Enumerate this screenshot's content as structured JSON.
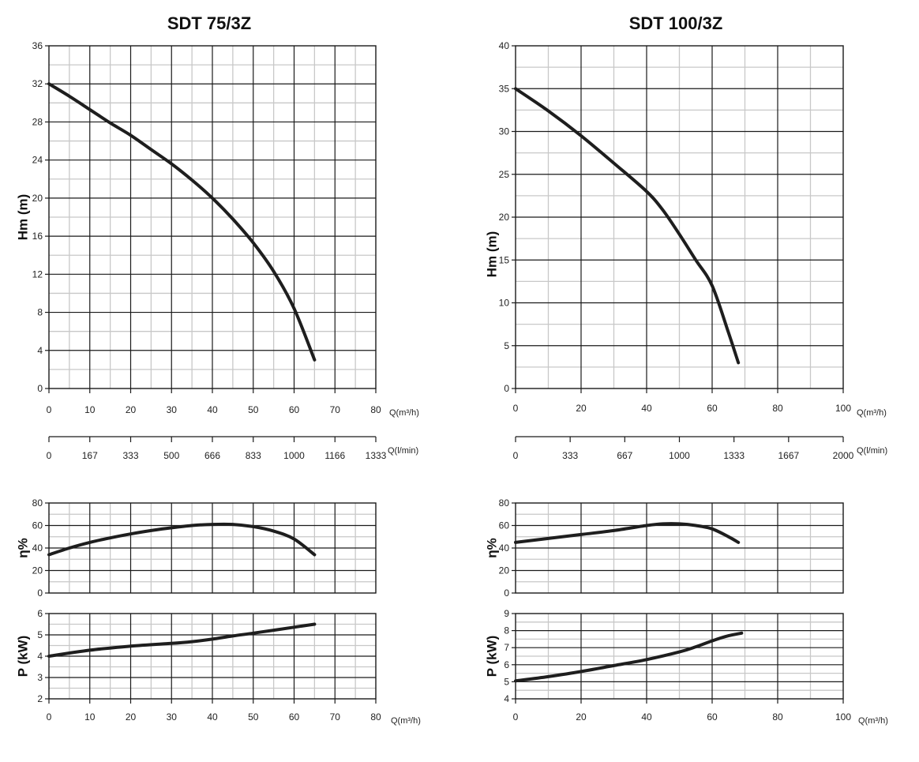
{
  "chart_data": [
    {
      "type": "line",
      "title": "SDT 75/3Z",
      "panels": [
        {
          "id": "head",
          "ylabel": "Hm   (m)",
          "xlim": [
            0,
            80
          ],
          "ylim": [
            0,
            36
          ],
          "x_ticks": [
            "0",
            "10",
            "20",
            "30",
            "40",
            "50",
            "60",
            "70",
            "80"
          ],
          "y_ticks": [
            "0",
            "4",
            "8",
            "12",
            "16",
            "20",
            "24",
            "28",
            "32",
            "36"
          ],
          "x_unit": "Q(m³/h)",
          "series": [
            {
              "x": [
                0,
                5,
                10,
                15,
                20,
                25,
                30,
                35,
                40,
                45,
                50,
                55,
                60,
                65
              ],
              "y": [
                32,
                30.7,
                29.3,
                27.9,
                26.6,
                25.1,
                23.6,
                21.9,
                20,
                17.8,
                15.3,
                12.3,
                8.4,
                3
              ]
            }
          ]
        },
        {
          "id": "flow-scale",
          "x_ticks": [
            "0",
            "167",
            "333",
            "500",
            "666",
            "833",
            "1000",
            "1166",
            "1333"
          ],
          "x_unit": "Q(l/min)"
        },
        {
          "id": "efficiency",
          "ylabel": "η%",
          "xlim": [
            0,
            80
          ],
          "ylim": [
            0,
            80
          ],
          "y_ticks": [
            "0",
            "20",
            "40",
            "60",
            "80"
          ],
          "series": [
            {
              "x": [
                0,
                5,
                10,
                15,
                20,
                25,
                30,
                35,
                40,
                45,
                50,
                55,
                60,
                65
              ],
              "y": [
                34,
                40,
                45,
                49,
                52.5,
                55.5,
                58,
                60,
                61,
                61,
                59,
                55,
                48,
                34
              ]
            }
          ]
        },
        {
          "id": "power",
          "ylabel": "P   (kW)",
          "xlim": [
            0,
            80
          ],
          "ylim": [
            2,
            6
          ],
          "x_ticks": [
            "0",
            "10",
            "20",
            "30",
            "40",
            "50",
            "60",
            "70",
            "80"
          ],
          "y_ticks": [
            "2",
            "3",
            "4",
            "5",
            "6"
          ],
          "x_unit": "Q(m³/h)",
          "series": [
            {
              "x": [
                0,
                10,
                20,
                30,
                35,
                40,
                45,
                50,
                55,
                60,
                65
              ],
              "y": [
                4,
                4.28,
                4.47,
                4.6,
                4.68,
                4.8,
                4.95,
                5.08,
                5.22,
                5.36,
                5.5
              ]
            }
          ]
        }
      ]
    },
    {
      "type": "line",
      "title": "SDT 100/3Z",
      "panels": [
        {
          "id": "head",
          "ylabel": "Hm   (m)",
          "xlim": [
            0,
            100
          ],
          "ylim": [
            0,
            40
          ],
          "x_ticks": [
            "0",
            "20",
            "40",
            "60",
            "80",
            "100"
          ],
          "y_ticks": [
            "0",
            "5",
            "10",
            "15",
            "20",
            "25",
            "30",
            "35",
            "40"
          ],
          "x_unit": "Q(m³/h)",
          "series": [
            {
              "x": [
                0,
                10,
                20,
                30,
                40,
                45,
                50,
                55,
                60,
                65,
                68
              ],
              "y": [
                35,
                32.4,
                29.5,
                26.3,
                23,
                20.8,
                18,
                15,
                12,
                6.5,
                3
              ]
            }
          ]
        },
        {
          "id": "flow-scale",
          "x_ticks": [
            "0",
            "333",
            "667",
            "1000",
            "1333",
            "1667",
            "2000"
          ],
          "x_unit": "Q(l/min)"
        },
        {
          "id": "efficiency",
          "ylabel": "η%",
          "xlim": [
            0,
            100
          ],
          "ylim": [
            0,
            80
          ],
          "y_ticks": [
            "0",
            "20",
            "40",
            "60",
            "80"
          ],
          "series": [
            {
              "x": [
                0,
                10,
                20,
                30,
                40,
                45,
                50,
                55,
                60,
                65,
                68
              ],
              "y": [
                45,
                48.5,
                52,
                55.5,
                60,
                61.5,
                61.5,
                60,
                57,
                50,
                45
              ]
            }
          ]
        },
        {
          "id": "power",
          "ylabel": "P   (kW)",
          "xlim": [
            0,
            100
          ],
          "ylim": [
            4,
            9
          ],
          "x_ticks": [
            "0",
            "20",
            "40",
            "60",
            "80",
            "100"
          ],
          "y_ticks": [
            "4",
            "5",
            "6",
            "7",
            "8",
            "9"
          ],
          "x_unit": "Q(m³/h)",
          "series": [
            {
              "x": [
                0,
                10,
                20,
                30,
                40,
                50,
                55,
                60,
                65,
                69
              ],
              "y": [
                5.05,
                5.3,
                5.6,
                5.95,
                6.3,
                6.75,
                7.05,
                7.4,
                7.7,
                7.85
              ]
            }
          ]
        }
      ]
    }
  ]
}
